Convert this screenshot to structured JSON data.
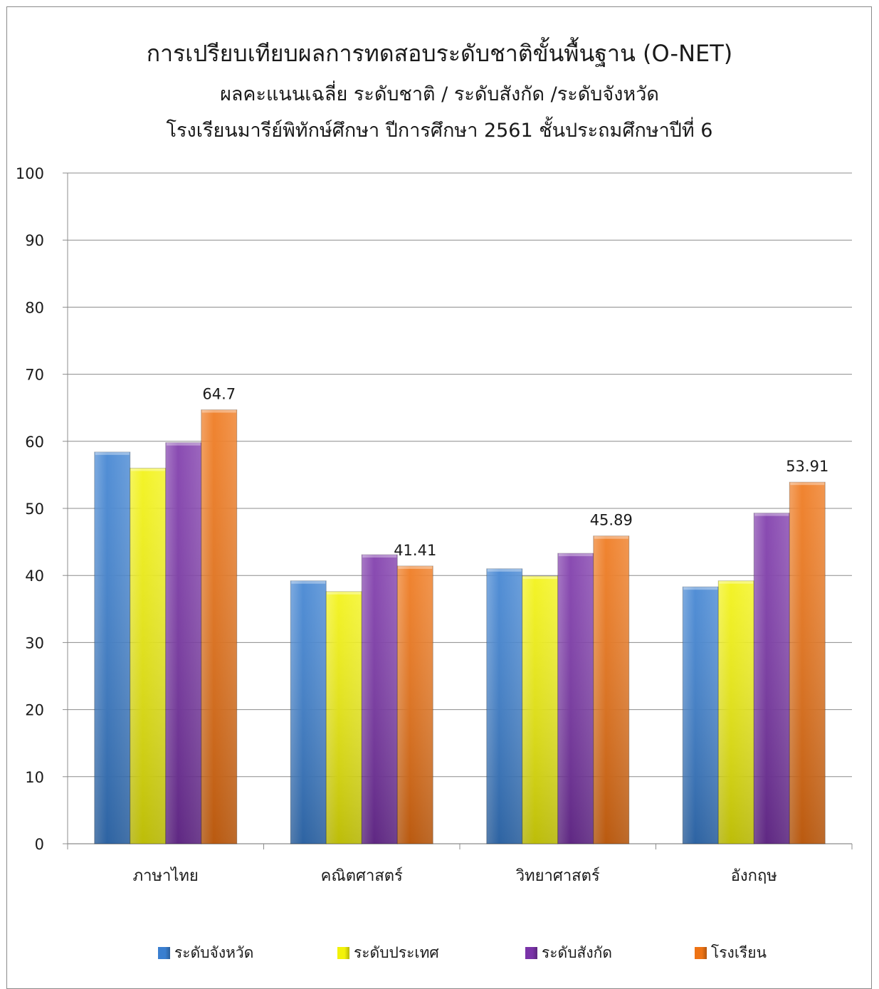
{
  "chart_data": {
    "type": "bar",
    "title": "การเปรียบเทียบผลการทดสอบระดับชาติขั้นพื้นฐาน (O-NET)",
    "subtitle_lines": [
      "ผลคะแนนเฉลี่ย ระดับชาติ / ระดับสังกัด /ระดับจังหวัด",
      "โรงเรียนมารีย์พิทักษ์ศึกษา ปีการศึกษา 2561 ชั้นประถมศึกษาปีที่ 6"
    ],
    "categories": [
      "ภาษาไทย",
      "คณิตศาสตร์",
      "วิทยาศาสตร์",
      "อังกฤษ"
    ],
    "series": [
      {
        "name": "ระดับจังหวัด",
        "color": "#3a7fd0",
        "values": [
          58.4,
          39.2,
          41.0,
          38.3
        ]
      },
      {
        "name": "ระดับประเทศ",
        "color": "#f2f20a",
        "values": [
          56.0,
          37.6,
          39.9,
          39.2
        ]
      },
      {
        "name": "ระดับสังกัด",
        "color": "#7a33a8",
        "values": [
          59.8,
          43.1,
          43.3,
          49.3
        ]
      },
      {
        "name": "โรงเรียน",
        "color": "#ee7314",
        "values": [
          64.7,
          41.41,
          45.89,
          53.91
        ]
      }
    ],
    "data_labels": [
      {
        "series": "โรงเรียน",
        "category": "ภาษาไทย",
        "text": "64.7"
      },
      {
        "series": "โรงเรียน",
        "category": "คณิตศาสตร์",
        "text": "41.41"
      },
      {
        "series": "โรงเรียน",
        "category": "วิทยาศาสตร์",
        "text": "45.89"
      },
      {
        "series": "โรงเรียน",
        "category": "อังกฤษ",
        "text": "53.91"
      }
    ],
    "ylim": [
      0,
      100
    ],
    "yticks": [
      0,
      10,
      20,
      30,
      40,
      50,
      60,
      70,
      80,
      90,
      100
    ],
    "grid": true,
    "legend_position": "bottom"
  }
}
